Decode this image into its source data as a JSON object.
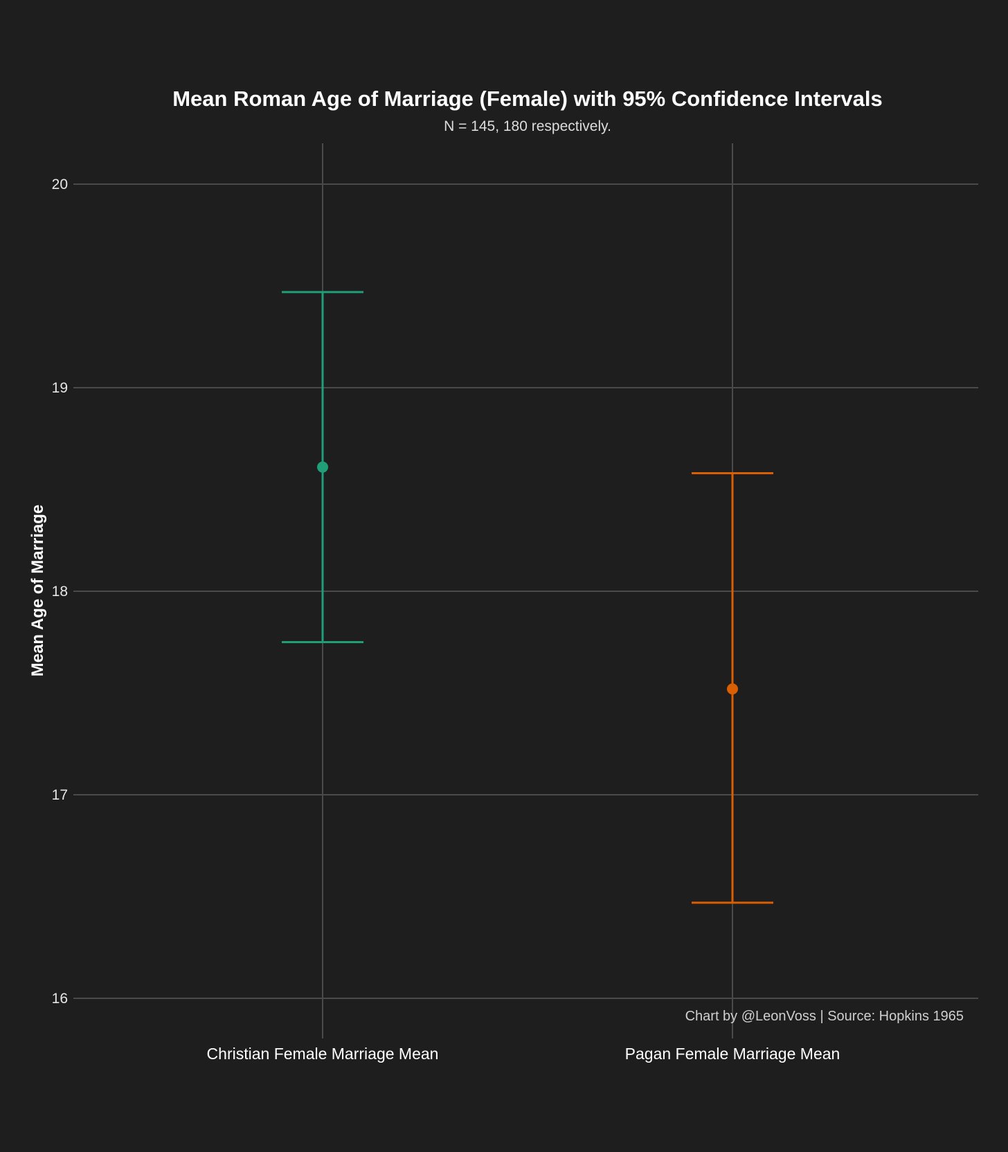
{
  "chart_data": {
    "type": "errorbar",
    "title": "Mean Roman Age of Marriage (Female) with 95% Confidence Intervals",
    "subtitle": "N = 145, 180 respectively.",
    "xlabel": "",
    "ylabel": "Mean Age of Marriage",
    "caption": "Chart by @LeonVoss | Source: Hopkins 1965",
    "ylim": [
      15.8,
      20.2
    ],
    "yticks": [
      16,
      17,
      18,
      19,
      20
    ],
    "grid": true,
    "categories": [
      "Christian Female Marriage Mean",
      "Pagan Female Marriage Mean"
    ],
    "series": [
      {
        "name": "Christian Female Marriage Mean",
        "mean": 18.61,
        "lower": 17.75,
        "upper": 19.47,
        "color": "#1f9e77"
      },
      {
        "name": "Pagan Female Marriage Mean",
        "mean": 17.52,
        "lower": 16.47,
        "upper": 18.58,
        "color": "#d95f02"
      }
    ]
  }
}
